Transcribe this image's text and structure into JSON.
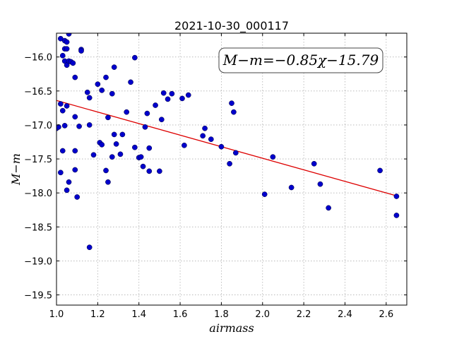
{
  "chart_data": {
    "type": "scatter",
    "title": "2021-10-30_000117",
    "xlabel": "airmass",
    "ylabel": "M−m",
    "xlim": [
      1.0,
      2.7
    ],
    "ylim": [
      -19.65,
      -15.65
    ],
    "xticks": [
      1.0,
      1.2,
      1.4,
      1.6,
      1.8,
      2.0,
      2.2,
      2.4,
      2.6
    ],
    "xtick_labels": [
      "1.0",
      "1.2",
      "1.4",
      "1.6",
      "1.8",
      "2.0",
      "2.2",
      "2.4",
      "2.6"
    ],
    "yticks": [
      -16.0,
      -16.5,
      -17.0,
      -17.5,
      -18.0,
      -18.5,
      -19.0,
      -19.5
    ],
    "ytick_labels": [
      "−16.0",
      "−16.5",
      "−17.0",
      "−17.5",
      "−18.0",
      "−18.5",
      "−19.0",
      "−19.5"
    ],
    "grid": true,
    "annotation": "M−m=−0.85χ−15.79",
    "fit": {
      "slope": -0.85,
      "intercept": -15.79,
      "x_range": [
        1.0,
        2.65
      ]
    },
    "colors": {
      "points": "#0000cc",
      "fit": "#dd0000"
    },
    "points": [
      [
        1.02,
        -15.73
      ],
      [
        1.04,
        -15.76
      ],
      [
        1.05,
        -15.78
      ],
      [
        1.06,
        -15.66
      ],
      [
        1.04,
        -15.88
      ],
      [
        1.05,
        -15.88
      ],
      [
        1.03,
        -15.98
      ],
      [
        1.04,
        -16.06
      ],
      [
        1.05,
        -16.12
      ],
      [
        1.06,
        -16.06
      ],
      [
        1.07,
        -16.07
      ],
      [
        1.08,
        -16.09
      ],
      [
        1.12,
        -15.89
      ],
      [
        1.12,
        -15.91
      ],
      [
        1.09,
        -16.3
      ],
      [
        1.0,
        -17.05
      ],
      [
        1.01,
        -17.03
      ],
      [
        1.02,
        -16.69
      ],
      [
        1.03,
        -16.79
      ],
      [
        1.05,
        -16.72
      ],
      [
        1.04,
        -17.01
      ],
      [
        1.03,
        -17.38
      ],
      [
        1.02,
        -17.7
      ],
      [
        1.05,
        -17.96
      ],
      [
        1.06,
        -17.84
      ],
      [
        1.09,
        -16.88
      ],
      [
        1.09,
        -17.38
      ],
      [
        1.09,
        -17.66
      ],
      [
        1.1,
        -18.06
      ],
      [
        1.11,
        -17.02
      ],
      [
        1.15,
        -16.52
      ],
      [
        1.16,
        -16.6
      ],
      [
        1.16,
        -17.0
      ],
      [
        1.18,
        -17.44
      ],
      [
        1.16,
        -18.8
      ],
      [
        1.2,
        -16.4
      ],
      [
        1.22,
        -16.49
      ],
      [
        1.24,
        -16.3
      ],
      [
        1.21,
        -17.26
      ],
      [
        1.22,
        -17.29
      ],
      [
        1.25,
        -16.89
      ],
      [
        1.24,
        -17.67
      ],
      [
        1.25,
        -17.84
      ],
      [
        1.27,
        -16.54
      ],
      [
        1.28,
        -16.15
      ],
      [
        1.28,
        -17.14
      ],
      [
        1.29,
        -17.28
      ],
      [
        1.27,
        -17.47
      ],
      [
        1.31,
        -17.43
      ],
      [
        1.32,
        -17.14
      ],
      [
        1.34,
        -16.81
      ],
      [
        1.36,
        -16.37
      ],
      [
        1.38,
        -16.01
      ],
      [
        1.38,
        -17.33
      ],
      [
        1.4,
        -17.48
      ],
      [
        1.41,
        -17.47
      ],
      [
        1.42,
        -17.61
      ],
      [
        1.43,
        -17.03
      ],
      [
        1.44,
        -16.83
      ],
      [
        1.45,
        -17.34
      ],
      [
        1.45,
        -17.68
      ],
      [
        1.48,
        -16.71
      ],
      [
        1.5,
        -17.68
      ],
      [
        1.51,
        -16.92
      ],
      [
        1.52,
        -16.53
      ],
      [
        1.54,
        -16.62
      ],
      [
        1.56,
        -16.54
      ],
      [
        1.61,
        -16.61
      ],
      [
        1.62,
        -17.3
      ],
      [
        1.64,
        -16.56
      ],
      [
        1.71,
        -17.16
      ],
      [
        1.72,
        -17.05
      ],
      [
        1.75,
        -17.21
      ],
      [
        1.8,
        -17.32
      ],
      [
        1.84,
        -17.57
      ],
      [
        1.85,
        -16.68
      ],
      [
        1.86,
        -16.81
      ],
      [
        1.87,
        -17.41
      ],
      [
        2.01,
        -18.02
      ],
      [
        2.05,
        -17.47
      ],
      [
        2.14,
        -17.92
      ],
      [
        2.25,
        -17.57
      ],
      [
        2.28,
        -17.87
      ],
      [
        2.32,
        -18.22
      ],
      [
        2.57,
        -17.67
      ],
      [
        2.65,
        -18.05
      ],
      [
        2.65,
        -18.33
      ]
    ]
  }
}
